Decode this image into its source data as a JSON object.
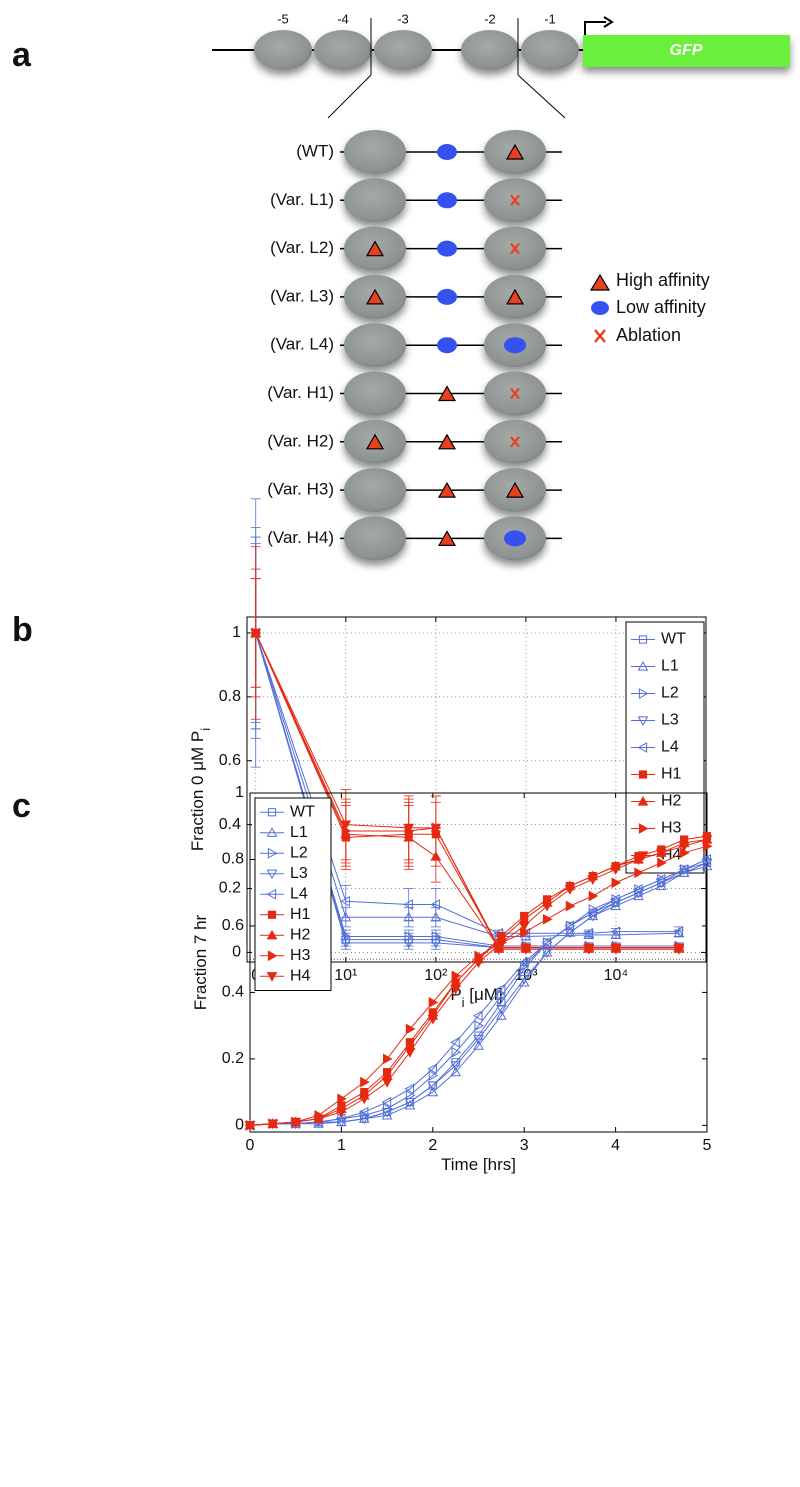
{
  "diagram": {
    "panel_label": "a",
    "nucleosome_labels": [
      "-5",
      "-4",
      "-3",
      "-2",
      "-1"
    ],
    "gene": "GFP",
    "variants": [
      "(WT)",
      "(Var. L1)",
      "(Var. L2)",
      "(Var. L3)",
      "(Var. L4)",
      "(Var. H1)",
      "(Var. H2)",
      "(Var. H3)",
      "(Var. H4)"
    ],
    "legend": [
      "High affinity",
      "Low affinity",
      "Ablation"
    ]
  },
  "chart_data": [
    {
      "type": "line",
      "panel_label": "b",
      "xlabel": [
        "P",
        "i",
        " [μM]"
      ],
      "ylabel": [
        "Fraction 0 μM P",
        "i"
      ],
      "xscale": "log",
      "x": [
        0,
        10,
        50,
        100,
        500,
        1000,
        5000,
        10000,
        50000
      ],
      "xlim": [
        0.8,
        100000
      ],
      "xticks": [
        0,
        {
          "value": 10,
          "label": "10¹"
        },
        {
          "value": 100,
          "label": "10²"
        },
        {
          "value": 1000,
          "label": "10³"
        },
        {
          "value": 10000,
          "label": "10⁴"
        }
      ],
      "ylim": [
        -0.03,
        1.05
      ],
      "yticks": [
        0,
        0.2,
        0.4,
        0.6,
        0.8,
        1
      ],
      "grid": true,
      "legend": "upper right",
      "series": [
        {
          "name": "WT",
          "color": "#5470d8",
          "marker": "square",
          "filled": false,
          "values": [
            1,
            0.04,
            0.04,
            0.04,
            0.015,
            0.015,
            0.015,
            0.015,
            0.015
          ],
          "errors": [
            0.33,
            0.02,
            0.02,
            0.02,
            0.01,
            0.01,
            0.01,
            0.01,
            0.01
          ]
        },
        {
          "name": "L1",
          "color": "#5470d8",
          "marker": "triangle-up",
          "filled": false,
          "values": [
            1,
            0.11,
            0.11,
            0.11,
            0.05,
            0.05,
            0.055,
            0.055,
            0.06
          ],
          "errors": [
            0.3,
            0.03,
            0.03,
            0.03,
            0.01,
            0.01,
            0.01,
            0.01,
            0.01
          ]
        },
        {
          "name": "L2",
          "color": "#5470d8",
          "marker": "triangle-right",
          "filled": false,
          "values": [
            1,
            0.05,
            0.05,
            0.05,
            0.02,
            0.02,
            0.02,
            0.02,
            0.02
          ],
          "errors": [
            0.28,
            0.02,
            0.02,
            0.02,
            0.01,
            0.01,
            0.01,
            0.01,
            0.01
          ]
        },
        {
          "name": "L3",
          "color": "#5470d8",
          "marker": "triangle-down",
          "filled": false,
          "values": [
            1,
            0.03,
            0.03,
            0.03,
            0.015,
            0.015,
            0.015,
            0.015,
            0.015
          ],
          "errors": [
            0.3,
            0.02,
            0.02,
            0.02,
            0.01,
            0.01,
            0.01,
            0.01,
            0.01
          ]
        },
        {
          "name": "L4",
          "color": "#5470d8",
          "marker": "triangle-left",
          "filled": false,
          "values": [
            1,
            0.16,
            0.15,
            0.15,
            0.06,
            0.06,
            0.06,
            0.065,
            0.065
          ],
          "errors": [
            0.42,
            0.05,
            0.05,
            0.05,
            0.01,
            0.01,
            0.01,
            0.01,
            0.015
          ]
        },
        {
          "name": "H1",
          "color": "#e62a12",
          "marker": "square",
          "filled": true,
          "values": [
            1,
            0.36,
            0.37,
            0.37,
            0.015,
            0.015,
            0.015,
            0.015,
            0.015
          ],
          "errors": [
            0.17,
            0.1,
            0.1,
            0.1,
            0.01,
            0.01,
            0.01,
            0.01,
            0.01
          ]
        },
        {
          "name": "H2",
          "color": "#e62a12",
          "marker": "triangle-up",
          "filled": true,
          "values": [
            1,
            0.37,
            0.36,
            0.3,
            0.015,
            0.015,
            0.015,
            0.015,
            0.015
          ],
          "errors": [
            0.17,
            0.1,
            0.1,
            0.08,
            0.01,
            0.01,
            0.01,
            0.01,
            0.01
          ]
        },
        {
          "name": "H3",
          "color": "#e62a12",
          "marker": "triangle-right",
          "filled": true,
          "values": [
            1,
            0.38,
            0.38,
            0.39,
            0.015,
            0.015,
            0.015,
            0.015,
            0.015
          ],
          "errors": [
            0.2,
            0.1,
            0.1,
            0.1,
            0.01,
            0.01,
            0.01,
            0.01,
            0.01
          ]
        },
        {
          "name": "H4",
          "color": "#e62a12",
          "marker": "triangle-down",
          "filled": true,
          "values": [
            1,
            0.4,
            0.39,
            0.39,
            0.01,
            0.01,
            0.01,
            0.01,
            0.01
          ],
          "errors": [
            0.27,
            0.11,
            0.1,
            0.1,
            0.01,
            0.01,
            0.01,
            0.01,
            0.01
          ]
        }
      ]
    },
    {
      "type": "line",
      "panel_label": "c",
      "xlabel": [
        "Time [hrs]"
      ],
      "ylabel": [
        "Fraction 7 hr"
      ],
      "x": [
        0,
        0.25,
        0.5,
        0.75,
        1,
        1.25,
        1.5,
        1.75,
        2,
        2.25,
        2.5,
        2.75,
        3,
        3.25,
        3.5,
        3.75,
        4,
        4.25,
        4.5,
        4.75,
        5
      ],
      "xlim": [
        0,
        5
      ],
      "xticks": [
        0,
        1,
        2,
        3,
        4,
        5
      ],
      "ylim": [
        -0.02,
        1
      ],
      "yticks": [
        0,
        0.2,
        0.4,
        0.6,
        0.8,
        1
      ],
      "grid": false,
      "hline": 0.5,
      "legend": "upper left",
      "series": [
        {
          "name": "WT",
          "color": "#5470d8",
          "marker": "square",
          "filled": false,
          "values": [
            0,
            0.005,
            0.005,
            0.01,
            0.01,
            0.02,
            0.04,
            0.07,
            0.12,
            0.19,
            0.27,
            0.37,
            0.47,
            0.55,
            0.6,
            0.64,
            0.67,
            0.7,
            0.73,
            0.76,
            0.79
          ]
        },
        {
          "name": "L1",
          "color": "#5470d8",
          "marker": "triangle-up",
          "filled": false,
          "values": [
            0,
            0.005,
            0.005,
            0.005,
            0.01,
            0.02,
            0.03,
            0.06,
            0.1,
            0.16,
            0.24,
            0.33,
            0.43,
            0.52,
            0.58,
            0.63,
            0.66,
            0.69,
            0.72,
            0.76,
            0.78
          ]
        },
        {
          "name": "L2",
          "color": "#5470d8",
          "marker": "triangle-right",
          "filled": false,
          "values": [
            0,
            0.005,
            0.005,
            0.01,
            0.02,
            0.03,
            0.05,
            0.09,
            0.15,
            0.22,
            0.3,
            0.39,
            0.48,
            0.55,
            0.6,
            0.65,
            0.68,
            0.71,
            0.74,
            0.77,
            0.8
          ]
        },
        {
          "name": "L3",
          "color": "#5470d8",
          "marker": "triangle-down",
          "filled": false,
          "values": [
            0,
            0.005,
            0.005,
            0.01,
            0.01,
            0.02,
            0.04,
            0.07,
            0.12,
            0.18,
            0.26,
            0.35,
            0.44,
            0.52,
            0.58,
            0.63,
            0.67,
            0.7,
            0.73,
            0.77,
            0.79
          ]
        },
        {
          "name": "L4",
          "color": "#5470d8",
          "marker": "triangle-left",
          "filled": false,
          "values": [
            0,
            0.005,
            0.005,
            0.01,
            0.02,
            0.04,
            0.07,
            0.11,
            0.17,
            0.25,
            0.33,
            0.41,
            0.49,
            0.55,
            0.6,
            0.64,
            0.68,
            0.71,
            0.74,
            0.77,
            0.8
          ]
        },
        {
          "name": "H1",
          "color": "#e62a12",
          "marker": "square",
          "filled": true,
          "values": [
            0,
            0.005,
            0.01,
            0.02,
            0.06,
            0.1,
            0.16,
            0.25,
            0.34,
            0.43,
            0.5,
            0.57,
            0.63,
            0.68,
            0.72,
            0.75,
            0.78,
            0.81,
            0.83,
            0.86,
            0.87
          ]
        },
        {
          "name": "H2",
          "color": "#e62a12",
          "marker": "triangle-up",
          "filled": true,
          "values": [
            0,
            0.005,
            0.01,
            0.02,
            0.05,
            0.09,
            0.15,
            0.24,
            0.33,
            0.43,
            0.5,
            0.56,
            0.62,
            0.67,
            0.72,
            0.75,
            0.78,
            0.8,
            0.82,
            0.85,
            0.86
          ]
        },
        {
          "name": "H3",
          "color": "#e62a12",
          "marker": "triangle-right",
          "filled": true,
          "values": [
            0,
            0.005,
            0.01,
            0.03,
            0.08,
            0.13,
            0.2,
            0.29,
            0.37,
            0.45,
            0.51,
            0.55,
            0.58,
            0.62,
            0.66,
            0.69,
            0.73,
            0.76,
            0.79,
            0.82,
            0.84
          ]
        },
        {
          "name": "H4",
          "color": "#e62a12",
          "marker": "triangle-down",
          "filled": true,
          "values": [
            0,
            0.005,
            0.01,
            0.02,
            0.04,
            0.08,
            0.13,
            0.22,
            0.32,
            0.41,
            0.49,
            0.55,
            0.6,
            0.66,
            0.71,
            0.74,
            0.77,
            0.8,
            0.82,
            0.84,
            0.86
          ]
        }
      ]
    }
  ]
}
